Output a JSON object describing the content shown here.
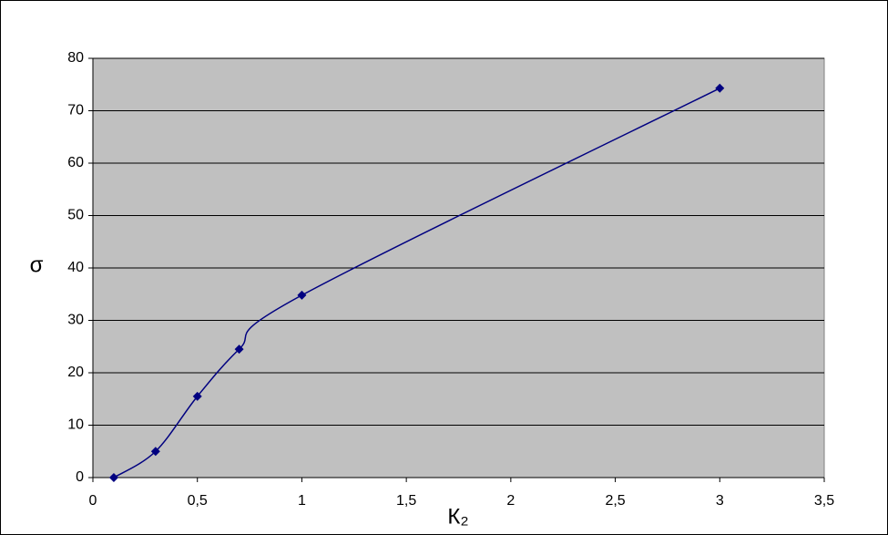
{
  "chart_data": {
    "type": "line",
    "xlabel": "К₂",
    "ylabel": "σ",
    "x": [
      0.1,
      0.3,
      0.5,
      0.7,
      1,
      3
    ],
    "values": [
      0,
      5,
      15.5,
      24.5,
      34.8,
      74.3
    ],
    "color": "#000080",
    "smooth": true,
    "xlim": [
      0,
      3.5
    ],
    "xticks": [
      0,
      {
        "value": 0.5,
        "label": "0,5"
      },
      1,
      {
        "value": 1.5,
        "label": "1,5"
      },
      2,
      {
        "value": 2.5,
        "label": "2,5"
      },
      3,
      {
        "value": 3.5,
        "label": "3,5"
      }
    ],
    "ylim": [
      0,
      80
    ],
    "yticks": [
      0,
      10,
      20,
      30,
      40,
      50,
      60,
      70,
      80
    ],
    "grid": true
  }
}
